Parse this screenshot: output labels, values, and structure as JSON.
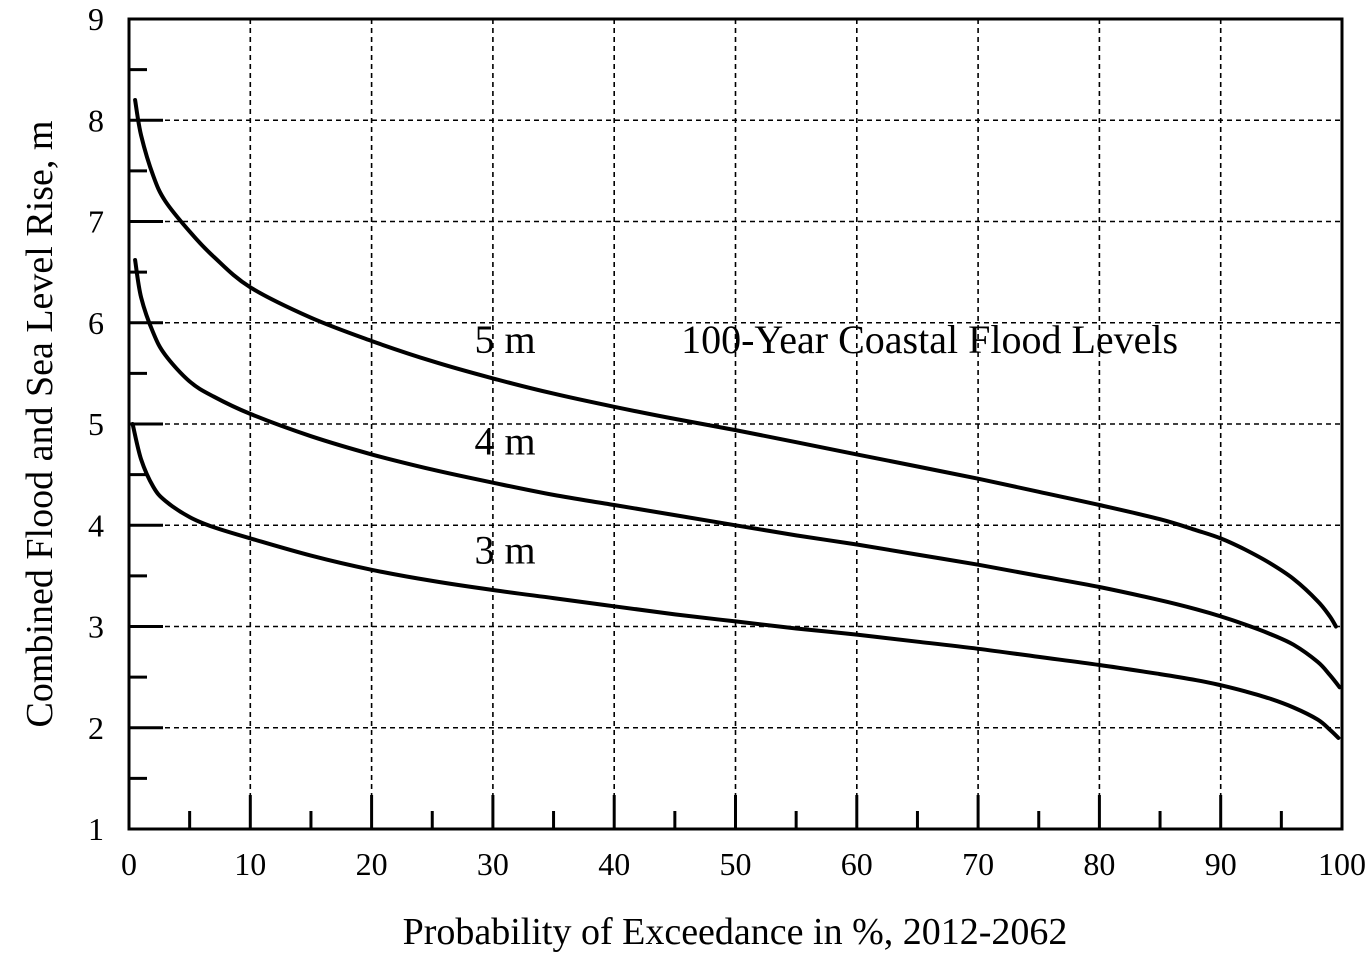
{
  "chart_data": {
    "type": "line",
    "title": "",
    "xlabel": "Probability of Exceedance in %, 2012-2062",
    "ylabel": "Combined Flood and Sea Level Rise, m",
    "xlim": [
      0,
      100
    ],
    "ylim": [
      1,
      9
    ],
    "x_ticks": [
      0,
      10,
      20,
      30,
      40,
      50,
      60,
      70,
      80,
      90,
      100
    ],
    "y_ticks": [
      1,
      2,
      3,
      4,
      5,
      6,
      7,
      8,
      9
    ],
    "grid": true,
    "series": [
      {
        "name": "5 m",
        "x": [
          0.5,
          1,
          2,
          3,
          5,
          7,
          10,
          15,
          20,
          25,
          30,
          35,
          40,
          45,
          50,
          55,
          60,
          65,
          70,
          75,
          80,
          85,
          88,
          90,
          92,
          94,
          96,
          98,
          99,
          99.5
        ],
        "y": [
          8.2,
          7.85,
          7.45,
          7.2,
          6.9,
          6.65,
          6.35,
          6.05,
          5.82,
          5.62,
          5.45,
          5.3,
          5.17,
          5.05,
          4.94,
          4.82,
          4.7,
          4.58,
          4.46,
          4.33,
          4.2,
          4.06,
          3.95,
          3.87,
          3.76,
          3.63,
          3.47,
          3.25,
          3.1,
          3.0
        ]
      },
      {
        "name": "4 m",
        "x": [
          0.5,
          1,
          2,
          3,
          5,
          7,
          10,
          15,
          20,
          25,
          30,
          35,
          40,
          45,
          50,
          55,
          60,
          65,
          70,
          75,
          80,
          85,
          88,
          90,
          92,
          94,
          96,
          98,
          99,
          99.8
        ],
        "y": [
          6.62,
          6.25,
          5.9,
          5.68,
          5.42,
          5.27,
          5.1,
          4.88,
          4.7,
          4.55,
          4.42,
          4.3,
          4.2,
          4.1,
          4.0,
          3.9,
          3.81,
          3.71,
          3.61,
          3.5,
          3.39,
          3.26,
          3.17,
          3.1,
          3.02,
          2.93,
          2.82,
          2.65,
          2.52,
          2.4
        ]
      },
      {
        "name": "3 m",
        "x": [
          0.3,
          1,
          2,
          3,
          5,
          7,
          10,
          15,
          20,
          25,
          30,
          35,
          40,
          45,
          50,
          55,
          60,
          65,
          70,
          75,
          80,
          85,
          88,
          90,
          92,
          94,
          96,
          98,
          99,
          99.7
        ],
        "y": [
          5.0,
          4.65,
          4.38,
          4.24,
          4.08,
          3.98,
          3.87,
          3.7,
          3.56,
          3.45,
          3.36,
          3.28,
          3.2,
          3.12,
          3.05,
          2.98,
          2.92,
          2.85,
          2.78,
          2.7,
          2.62,
          2.53,
          2.47,
          2.42,
          2.36,
          2.29,
          2.2,
          2.08,
          1.98,
          1.9
        ]
      }
    ],
    "annotations": [
      {
        "text": "5 m",
        "x": 31,
        "y": 5.7
      },
      {
        "text": "100-Year  Coastal Flood Levels",
        "x": 66,
        "y": 5.7
      },
      {
        "text": "4 m",
        "x": 31,
        "y": 4.7
      },
      {
        "text": "3 m",
        "x": 31,
        "y": 3.62
      }
    ]
  }
}
